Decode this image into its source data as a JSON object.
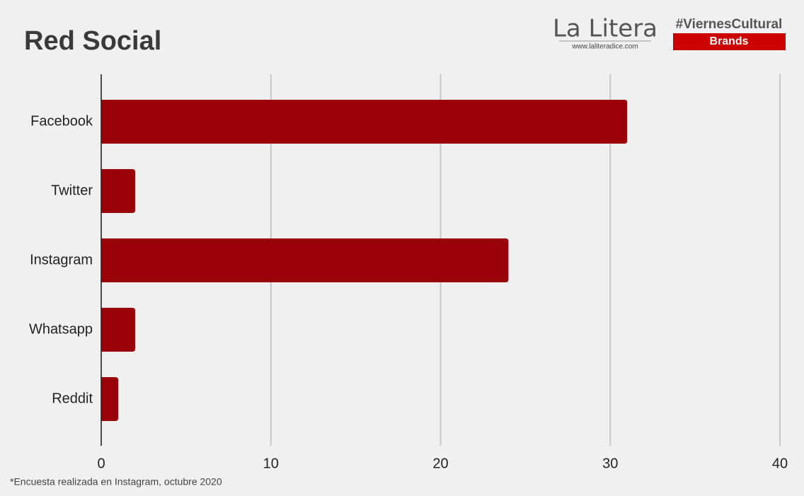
{
  "chart_data": {
    "type": "barh",
    "title": "Red Social",
    "categories": [
      "Facebook",
      "Twitter",
      "Instagram",
      "Whatsapp",
      "Reddit"
    ],
    "values": [
      31,
      2,
      24,
      2,
      1
    ],
    "color": "#990008",
    "xlim": [
      0,
      40
    ],
    "xticks": [
      0,
      10,
      20,
      30,
      40
    ],
    "grid": true,
    "note": "*Encuesta realizada en Instagram, octubre 2020"
  },
  "branding": {
    "logo": "La Litera",
    "url": "www.laliteradice.com",
    "hashtag": "#ViernesCultural",
    "tag": "Brands"
  }
}
